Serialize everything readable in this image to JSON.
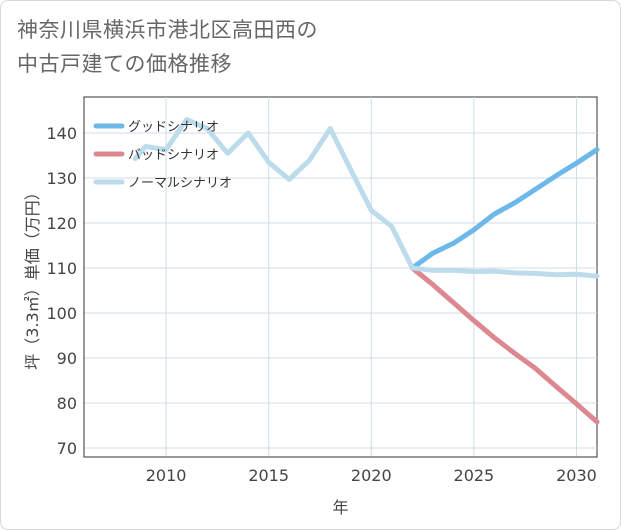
{
  "title_line1": "神奈川県横浜市港北区高田西の",
  "title_line2": "中古戸建ての価格推移",
  "chart_data": {
    "type": "line",
    "title": "神奈川県横浜市港北区高田西の中古戸建ての価格推移",
    "xlabel": "年",
    "ylabel": "坪（3.3㎡）単価（万円）",
    "xlim": [
      2006,
      2031
    ],
    "ylim": [
      68,
      148
    ],
    "xticks": [
      2010,
      2015,
      2020,
      2025,
      2030
    ],
    "yticks": [
      70,
      80,
      90,
      100,
      110,
      120,
      130,
      140
    ],
    "legend_position": "top-left",
    "series": [
      {
        "name": "グッドシナリオ",
        "color": "#6cb8e8",
        "x": [
          2022,
          2023,
          2024,
          2025,
          2026,
          2027,
          2028,
          2029,
          2030,
          2031
        ],
        "values": [
          110,
          113.3,
          115.5,
          118.5,
          122,
          124.5,
          127.5,
          130.5,
          133.3,
          136.3
        ]
      },
      {
        "name": "バッドシナリオ",
        "color": "#dd8890",
        "x": [
          2022,
          2023,
          2024,
          2025,
          2026,
          2027,
          2028,
          2029,
          2030,
          2031
        ],
        "values": [
          110,
          106.3,
          102.3,
          98.3,
          94.5,
          91,
          87.7,
          83.7,
          79.8,
          75.8
        ]
      },
      {
        "name": "ノーマルシナリオ",
        "color": "#bcdcec",
        "x": [
          2008.5,
          2009,
          2010,
          2011,
          2012,
          2013,
          2014,
          2015,
          2016,
          2017,
          2018,
          2019,
          2020,
          2021,
          2022,
          2023,
          2024,
          2025,
          2026,
          2027,
          2028,
          2029,
          2030,
          2031
        ],
        "values": [
          134.3,
          137,
          136.3,
          143,
          141,
          135.5,
          140,
          133.5,
          129.7,
          134,
          141,
          131.8,
          122.8,
          119.2,
          110,
          109.5,
          109.5,
          109.2,
          109.3,
          108.9,
          108.8,
          108.5,
          108.6,
          108.2
        ]
      }
    ]
  }
}
